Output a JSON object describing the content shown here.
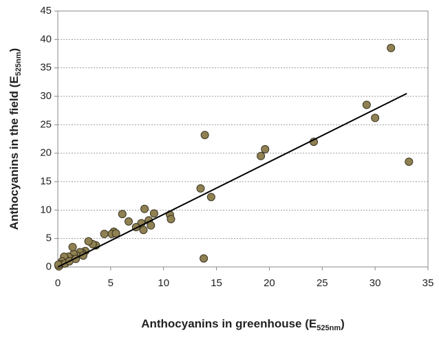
{
  "chart_data": {
    "type": "scatter",
    "x_label": {
      "text": "Anthocyanins in greenhouse (E",
      "subscript": "525nm",
      "suffix": ")"
    },
    "y_label": {
      "text": "Anthocyanins in the field (E",
      "subscript": "525nm",
      "suffix": ")"
    },
    "xlim": [
      0,
      35
    ],
    "xticks": [
      0,
      5,
      10,
      15,
      20,
      25,
      30,
      35
    ],
    "ylim": [
      0,
      45
    ],
    "yticks": [
      0,
      5,
      10,
      15,
      20,
      25,
      30,
      35,
      40,
      45
    ],
    "grid": true,
    "color": "#8f8152",
    "x": [
      31.5,
      29.2,
      30,
      33.2,
      24.2,
      19.6,
      19.2,
      13.9,
      13.5,
      14.5,
      13.8,
      10.6,
      10.7,
      9.1,
      8.2,
      8.6,
      8.8,
      8.1,
      7.9,
      7.4,
      6.7,
      6.1,
      5.3,
      5.1,
      5.5,
      4.4,
      3.6,
      3.3,
      2.9,
      2.6,
      2.3,
      2.1,
      1.8,
      1.5,
      1.4,
      1.2,
      1.0,
      0.8,
      0.6,
      0.5,
      0.4,
      0.3,
      0.2,
      0.1,
      0.05,
      0.7,
      1.1,
      1.7,
      2.4
    ],
    "values": [
      38.5,
      28.5,
      26.2,
      18.5,
      22,
      20.7,
      19.5,
      23.2,
      13.8,
      12.3,
      1.5,
      9.2,
      8.4,
      9.4,
      10.2,
      8.2,
      7.3,
      6.5,
      7.7,
      7.0,
      8.0,
      9.3,
      6.2,
      5.8,
      5.9,
      5.8,
      3.8,
      4.0,
      4.5,
      2.8,
      2.5,
      2.6,
      2.0,
      2.3,
      3.5,
      1.5,
      1.8,
      1.2,
      1.8,
      0.8,
      1.0,
      0.5,
      0.3,
      0.1,
      0.4,
      0.6,
      1.0,
      1.4,
      2.0
    ],
    "trendline": {
      "x": [
        0,
        33
      ],
      "y": [
        0,
        30.5
      ],
      "color": "#000000"
    }
  }
}
